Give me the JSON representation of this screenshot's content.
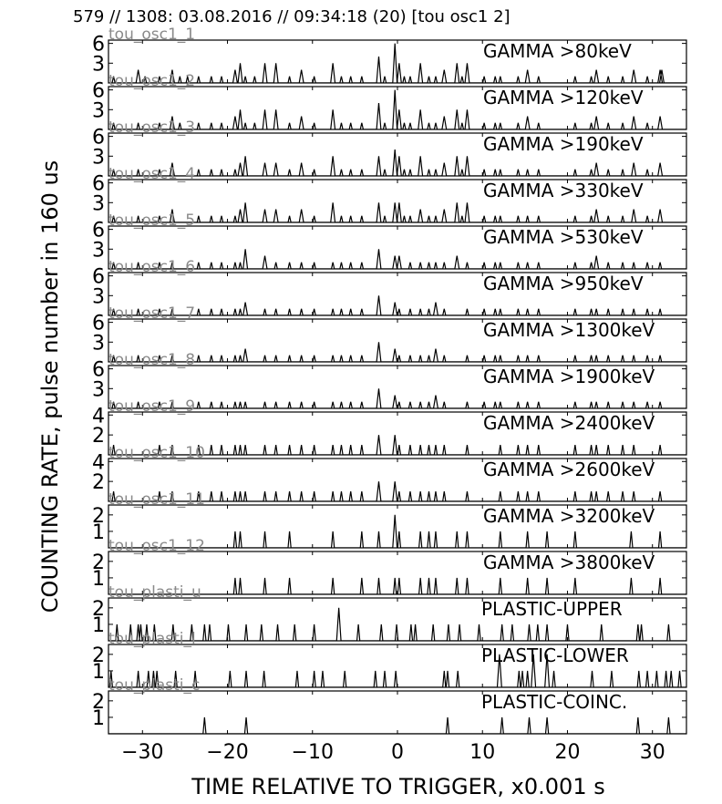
{
  "figure_title": "579 // 1308:   03.08.2016 // 09:34:18 (20)  [tou osc1 2]",
  "ylabel": "COUNTING RATE,    pulse number in 160 us",
  "xlabel": "TIME RELATIVE TO TRIGGER,   x0.001 s",
  "x_ticks": [
    -30,
    -20,
    -10,
    0,
    10,
    20,
    30
  ],
  "xlim": [
    -34,
    34
  ],
  "chart_data": [
    {
      "type": "line",
      "channel": "tou_osc1_1",
      "label": "GAMMA >80keV",
      "ylim": [
        0,
        6.5
      ],
      "yticks": [
        3,
        6
      ],
      "x": [
        -33.4,
        -30.5,
        -29.7,
        -28.0,
        -26.5,
        -25.6,
        -24.7,
        -23.4,
        -21.9,
        -20.7,
        -19.1,
        -18.5,
        -17.9,
        -16.8,
        -15.6,
        -14.3,
        -12.7,
        -11.3,
        -9.8,
        -7.6,
        -6.6,
        -5.5,
        -4.2,
        -2.2,
        -1.5,
        -0.3,
        0.2,
        0.8,
        1.5,
        2.7,
        3.7,
        4.5,
        5.5,
        7.0,
        7.6,
        8.2,
        10.2,
        11.5,
        12.1,
        14.2,
        15.3,
        16.6,
        20.9,
        22.8,
        23.4,
        24.8,
        26.5,
        27.8,
        29.4,
        30.9,
        31.1
      ],
      "y": [
        1,
        2,
        1,
        1,
        2,
        1,
        1,
        1,
        1,
        1,
        2,
        3,
        1,
        1,
        3,
        3,
        1,
        2,
        1,
        3,
        1,
        1,
        1,
        4,
        1,
        6,
        3,
        1,
        1,
        3,
        1,
        1,
        2,
        3,
        1,
        3,
        1,
        1,
        1,
        1,
        2,
        1,
        1,
        1,
        2,
        1,
        1,
        2,
        1,
        2,
        2
      ]
    },
    {
      "type": "line",
      "channel": "tou_osc1_2",
      "label": "GAMMA >120keV",
      "ylim": [
        0,
        6.5
      ],
      "yticks": [
        3,
        6
      ],
      "x": [
        -33.4,
        -30.5,
        -28.0,
        -26.5,
        -25.6,
        -23.4,
        -21.9,
        -20.7,
        -19.1,
        -18.5,
        -17.9,
        -16.8,
        -15.6,
        -14.3,
        -12.7,
        -11.3,
        -9.8,
        -7.6,
        -6.6,
        -5.5,
        -4.2,
        -2.2,
        -1.5,
        -0.3,
        0.2,
        0.8,
        1.5,
        2.7,
        3.7,
        4.5,
        5.5,
        7.0,
        7.6,
        8.2,
        10.2,
        11.5,
        12.1,
        14.2,
        15.3,
        16.6,
        20.9,
        22.8,
        23.4,
        24.8,
        26.5,
        27.8,
        29.4,
        30.9
      ],
      "y": [
        1,
        1,
        1,
        2,
        1,
        1,
        1,
        1,
        2,
        3,
        1,
        1,
        3,
        3,
        1,
        2,
        1,
        3,
        1,
        1,
        1,
        4,
        1,
        6,
        3,
        1,
        1,
        3,
        1,
        1,
        2,
        3,
        1,
        3,
        1,
        1,
        1,
        1,
        2,
        1,
        1,
        1,
        2,
        1,
        1,
        2,
        1,
        2
      ]
    },
    {
      "type": "line",
      "channel": "tou_osc1_3",
      "label": "GAMMA >190keV",
      "ylim": [
        0,
        6.5
      ],
      "yticks": [
        3,
        6
      ],
      "x": [
        -33.4,
        -30.5,
        -28.0,
        -26.5,
        -23.4,
        -21.9,
        -20.7,
        -19.1,
        -18.5,
        -17.9,
        -15.6,
        -14.3,
        -12.7,
        -11.3,
        -9.8,
        -7.6,
        -6.6,
        -5.5,
        -4.2,
        -2.2,
        -1.5,
        -0.3,
        0.2,
        0.8,
        1.5,
        2.7,
        3.7,
        4.5,
        5.5,
        7.0,
        7.6,
        8.2,
        10.2,
        11.5,
        12.1,
        14.2,
        15.3,
        16.6,
        20.9,
        22.8,
        23.4,
        24.8,
        26.5,
        27.8,
        29.4,
        30.9
      ],
      "y": [
        1,
        1,
        1,
        2,
        1,
        1,
        1,
        1,
        2,
        3,
        2,
        2,
        1,
        2,
        1,
        3,
        1,
        1,
        1,
        3,
        1,
        4,
        3,
        1,
        1,
        3,
        1,
        1,
        2,
        3,
        1,
        3,
        1,
        1,
        1,
        1,
        1,
        1,
        1,
        1,
        2,
        1,
        1,
        2,
        1,
        2
      ]
    },
    {
      "type": "line",
      "channel": "tou_osc1_4",
      "label": "GAMMA >330keV",
      "ylim": [
        0,
        6.5
      ],
      "yticks": [
        3,
        6
      ],
      "x": [
        -33.4,
        -30.5,
        -28.0,
        -26.5,
        -23.4,
        -21.9,
        -20.7,
        -19.1,
        -18.5,
        -17.9,
        -15.6,
        -14.3,
        -12.7,
        -11.3,
        -9.8,
        -7.6,
        -6.6,
        -5.5,
        -4.2,
        -2.2,
        -1.5,
        -0.3,
        0.2,
        0.8,
        1.5,
        2.7,
        3.7,
        4.5,
        5.5,
        7.0,
        7.6,
        8.2,
        10.2,
        11.5,
        12.1,
        14.2,
        15.3,
        16.6,
        20.9,
        22.8,
        23.4,
        24.8,
        26.5,
        27.8,
        29.4,
        30.9
      ],
      "y": [
        1,
        1,
        1,
        2,
        1,
        1,
        1,
        1,
        2,
        3,
        2,
        2,
        1,
        2,
        1,
        3,
        1,
        1,
        1,
        3,
        1,
        3,
        3,
        1,
        1,
        2,
        1,
        1,
        2,
        3,
        1,
        3,
        1,
        1,
        1,
        1,
        1,
        1,
        1,
        1,
        2,
        1,
        1,
        2,
        1,
        2
      ]
    },
    {
      "type": "line",
      "channel": "tou_osc1_5",
      "label": "GAMMA >530keV",
      "ylim": [
        0,
        6.5
      ],
      "yticks": [
        3,
        6
      ],
      "x": [
        -33.4,
        -30.5,
        -28.0,
        -26.5,
        -23.4,
        -21.9,
        -20.7,
        -19.1,
        -18.5,
        -17.9,
        -15.6,
        -14.3,
        -12.7,
        -11.3,
        -9.8,
        -7.6,
        -6.6,
        -5.5,
        -4.2,
        -2.2,
        -0.3,
        0.2,
        1.5,
        2.7,
        3.7,
        4.5,
        5.5,
        7.0,
        8.2,
        10.2,
        11.5,
        12.1,
        14.2,
        15.3,
        16.6,
        20.9,
        22.8,
        23.4,
        24.8,
        26.5,
        27.8,
        29.4,
        30.9
      ],
      "y": [
        1,
        1,
        1,
        1,
        1,
        1,
        1,
        1,
        1,
        3,
        2,
        1,
        1,
        1,
        1,
        1,
        1,
        1,
        1,
        3,
        2,
        2,
        1,
        1,
        1,
        1,
        1,
        2,
        1,
        1,
        1,
        1,
        1,
        1,
        1,
        1,
        1,
        2,
        1,
        1,
        1,
        1,
        1
      ]
    },
    {
      "type": "line",
      "channel": "tou_osc1_6",
      "label": "GAMMA >950keV",
      "ylim": [
        0,
        6.5
      ],
      "yticks": [
        3,
        6
      ],
      "x": [
        -33.4,
        -30.5,
        -28.0,
        -26.5,
        -23.4,
        -21.9,
        -20.7,
        -19.1,
        -18.5,
        -17.9,
        -15.6,
        -14.3,
        -12.7,
        -11.3,
        -9.8,
        -7.6,
        -6.6,
        -5.5,
        -4.2,
        -2.2,
        -0.3,
        0.2,
        1.5,
        2.7,
        3.7,
        4.5,
        5.5,
        8.2,
        10.2,
        11.5,
        12.1,
        14.2,
        15.3,
        16.6,
        20.9,
        22.8,
        23.4,
        24.8,
        26.5,
        27.8,
        29.4,
        30.9
      ],
      "y": [
        1,
        1,
        1,
        1,
        1,
        1,
        1,
        1,
        1,
        2,
        1,
        1,
        1,
        1,
        1,
        1,
        1,
        1,
        1,
        3,
        2,
        1,
        1,
        1,
        1,
        2,
        1,
        1,
        1,
        1,
        1,
        1,
        1,
        1,
        1,
        1,
        1,
        1,
        1,
        1,
        1,
        1
      ]
    },
    {
      "type": "line",
      "channel": "tou_osc1_7",
      "label": "GAMMA >1300keV",
      "ylim": [
        0,
        6.5
      ],
      "yticks": [
        3,
        6
      ],
      "x": [
        -33.4,
        -30.5,
        -28.0,
        -26.5,
        -23.4,
        -21.9,
        -20.7,
        -19.1,
        -18.5,
        -17.9,
        -15.6,
        -14.3,
        -12.7,
        -11.3,
        -9.8,
        -7.6,
        -6.6,
        -5.5,
        -4.2,
        -2.2,
        -0.3,
        0.2,
        1.5,
        2.7,
        3.7,
        4.5,
        5.5,
        8.2,
        10.2,
        11.5,
        12.1,
        14.2,
        15.3,
        16.6,
        20.9,
        22.8,
        23.4,
        24.8,
        26.5,
        27.8,
        29.4,
        30.9
      ],
      "y": [
        1,
        1,
        1,
        1,
        1,
        1,
        1,
        1,
        1,
        2,
        1,
        1,
        1,
        1,
        1,
        1,
        1,
        1,
        1,
        3,
        2,
        1,
        1,
        1,
        1,
        2,
        1,
        1,
        1,
        1,
        1,
        1,
        1,
        1,
        1,
        1,
        1,
        1,
        1,
        1,
        1,
        1
      ]
    },
    {
      "type": "line",
      "channel": "tou_osc1_8",
      "label": "GAMMA >1900keV",
      "ylim": [
        0,
        6.5
      ],
      "yticks": [
        3,
        6
      ],
      "x": [
        -33.4,
        -30.5,
        -28.0,
        -26.5,
        -23.4,
        -21.9,
        -20.7,
        -19.1,
        -18.5,
        -17.9,
        -15.6,
        -14.3,
        -12.7,
        -11.3,
        -9.8,
        -7.6,
        -6.6,
        -5.5,
        -4.2,
        -2.2,
        -0.3,
        0.2,
        1.5,
        2.7,
        3.7,
        4.5,
        5.5,
        8.2,
        10.2,
        11.5,
        12.1,
        14.2,
        15.3,
        16.6,
        20.9,
        22.8,
        23.4,
        24.8,
        26.5,
        27.8,
        29.4,
        30.9
      ],
      "y": [
        1,
        1,
        1,
        1,
        1,
        1,
        1,
        1,
        1,
        1,
        1,
        1,
        1,
        1,
        1,
        1,
        1,
        1,
        1,
        3,
        2,
        1,
        1,
        1,
        1,
        2,
        1,
        1,
        1,
        1,
        1,
        1,
        1,
        1,
        1,
        1,
        1,
        1,
        1,
        1,
        1,
        1
      ]
    },
    {
      "type": "line",
      "channel": "tou_osc1_9",
      "label": "GAMMA >2400keV",
      "ylim": [
        0,
        4.3
      ],
      "yticks": [
        2,
        4
      ],
      "x": [
        -33.4,
        -28.0,
        -26.5,
        -23.4,
        -21.9,
        -20.7,
        -19.1,
        -18.5,
        -17.9,
        -15.6,
        -14.3,
        -12.7,
        -11.3,
        -9.8,
        -7.6,
        -6.6,
        -5.5,
        -4.2,
        -2.2,
        -0.3,
        0.2,
        1.5,
        2.7,
        3.7,
        4.5,
        5.5,
        8.2,
        12.1,
        14.2,
        15.3,
        16.6,
        20.9,
        22.8,
        23.4,
        24.8,
        26.5,
        27.8,
        30.9
      ],
      "y": [
        1,
        1,
        1,
        1,
        1,
        1,
        1,
        1,
        1,
        1,
        1,
        1,
        1,
        1,
        1,
        1,
        1,
        1,
        2,
        2,
        1,
        1,
        1,
        1,
        1,
        1,
        1,
        1,
        1,
        1,
        1,
        1,
        1,
        1,
        1,
        1,
        1,
        1
      ]
    },
    {
      "type": "line",
      "channel": "tou_osc1_10",
      "label": "GAMMA >2600keV",
      "ylim": [
        0,
        4.3
      ],
      "yticks": [
        2,
        4
      ],
      "x": [
        -33.4,
        -28.0,
        -26.5,
        -23.4,
        -21.9,
        -20.7,
        -19.1,
        -18.5,
        -17.9,
        -15.6,
        -14.3,
        -12.7,
        -11.3,
        -9.8,
        -7.6,
        -6.6,
        -5.5,
        -4.2,
        -2.2,
        -0.3,
        0.2,
        1.5,
        2.7,
        3.7,
        4.5,
        5.5,
        8.2,
        12.1,
        14.2,
        15.3,
        16.6,
        20.9,
        22.8,
        23.4,
        24.8,
        26.5,
        27.8,
        30.9
      ],
      "y": [
        1,
        1,
        1,
        1,
        1,
        1,
        1,
        1,
        1,
        1,
        1,
        1,
        1,
        1,
        1,
        1,
        1,
        1,
        2,
        2,
        1,
        1,
        1,
        1,
        1,
        1,
        1,
        1,
        1,
        1,
        1,
        1,
        1,
        1,
        1,
        1,
        1,
        1
      ]
    },
    {
      "type": "line",
      "channel": "tou_osc1_11",
      "label": "GAMMA >3200keV",
      "ylim": [
        0,
        2.6
      ],
      "yticks": [
        1,
        2
      ],
      "x": [
        -19.1,
        -18.5,
        -15.6,
        -12.7,
        -7.6,
        -4.2,
        -2.2,
        -0.3,
        0.2,
        2.7,
        3.7,
        4.5,
        7.0,
        8.2,
        12.1,
        15.3,
        17.6,
        20.9,
        27.5,
        30.9
      ],
      "y": [
        1,
        1,
        1,
        1,
        1,
        1,
        1,
        2,
        1,
        1,
        1,
        1,
        1,
        1,
        1,
        1,
        1,
        1,
        1,
        1
      ]
    },
    {
      "type": "line",
      "channel": "tou_osc1_12",
      "label": "GAMMA >3800keV",
      "ylim": [
        0,
        2.6
      ],
      "yticks": [
        1,
        2
      ],
      "x": [
        -19.1,
        -18.5,
        -15.6,
        -12.7,
        -7.6,
        -4.2,
        -2.2,
        -0.3,
        0.2,
        2.7,
        3.7,
        4.5,
        7.0,
        8.2,
        12.1,
        15.3,
        17.6,
        20.9,
        27.5,
        30.9
      ],
      "y": [
        1,
        1,
        1,
        1,
        1,
        1,
        1,
        1,
        1,
        1,
        1,
        1,
        1,
        1,
        1,
        1,
        1,
        1,
        1,
        1
      ]
    },
    {
      "type": "line",
      "channel": "tou_plasti_u",
      "label": "PLASTIC-UPPER",
      "ylim": [
        0,
        2.6
      ],
      "yticks": [
        1,
        2
      ],
      "x": [
        -33.0,
        -31.4,
        -30.5,
        -30.2,
        -29.5,
        -28.6,
        -26.4,
        -24.2,
        -22.7,
        -22.1,
        -19.9,
        -17.8,
        -16.0,
        -14.1,
        -12.1,
        -9.8,
        -6.9,
        -4.6,
        -1.9,
        -0.1,
        1.6,
        2.1,
        4.2,
        6.0,
        7.3,
        9.6,
        12.3,
        13.5,
        15.5,
        16.5,
        17.6,
        20.0,
        24.0,
        28.3,
        28.7,
        31.9
      ],
      "y": [
        1,
        1,
        1,
        1,
        1,
        1,
        1,
        1,
        1,
        1,
        1,
        1,
        1,
        1,
        1,
        1,
        2,
        1,
        1,
        1,
        1,
        1,
        1,
        1,
        1,
        1,
        1,
        1,
        1,
        1,
        1,
        1,
        1,
        1,
        1,
        1
      ]
    },
    {
      "type": "line",
      "channel": "tou_plasti_l",
      "label": "PLASTIC-LOWER",
      "ylim": [
        0,
        2.6
      ],
      "yticks": [
        1,
        2
      ],
      "x": [
        -33.7,
        -30.5,
        -29.3,
        -28.7,
        -28.3,
        -26.1,
        -23.8,
        -19.7,
        -17.8,
        -15.7,
        -11.8,
        -9.8,
        -8.8,
        -6.2,
        -2.6,
        -1.5,
        -0.2,
        5.5,
        5.9,
        7.1,
        12.0,
        14.3,
        14.7,
        15.3,
        16.0,
        17.6,
        18.4,
        22.9,
        25.2,
        28.4,
        29.4,
        30.5,
        31.6,
        32.2,
        33.2
      ],
      "y": [
        1,
        1,
        1,
        1,
        1,
        1,
        1,
        1,
        1,
        1,
        1,
        1,
        1,
        1,
        1,
        1,
        1,
        1,
        1,
        1,
        2,
        1,
        1,
        1,
        2,
        2,
        1,
        1,
        1,
        1,
        1,
        1,
        1,
        1,
        1
      ]
    },
    {
      "type": "line",
      "channel": "tou_plasti_c",
      "label": "PLASTIC-COINC.",
      "ylim": [
        0,
        2.6
      ],
      "yticks": [
        1,
        2
      ],
      "x": [
        -22.7,
        -17.8,
        5.9,
        12.3,
        15.5,
        17.6,
        28.3,
        31.9
      ],
      "y": [
        1,
        1,
        1,
        1,
        1,
        1,
        1,
        1
      ]
    }
  ]
}
